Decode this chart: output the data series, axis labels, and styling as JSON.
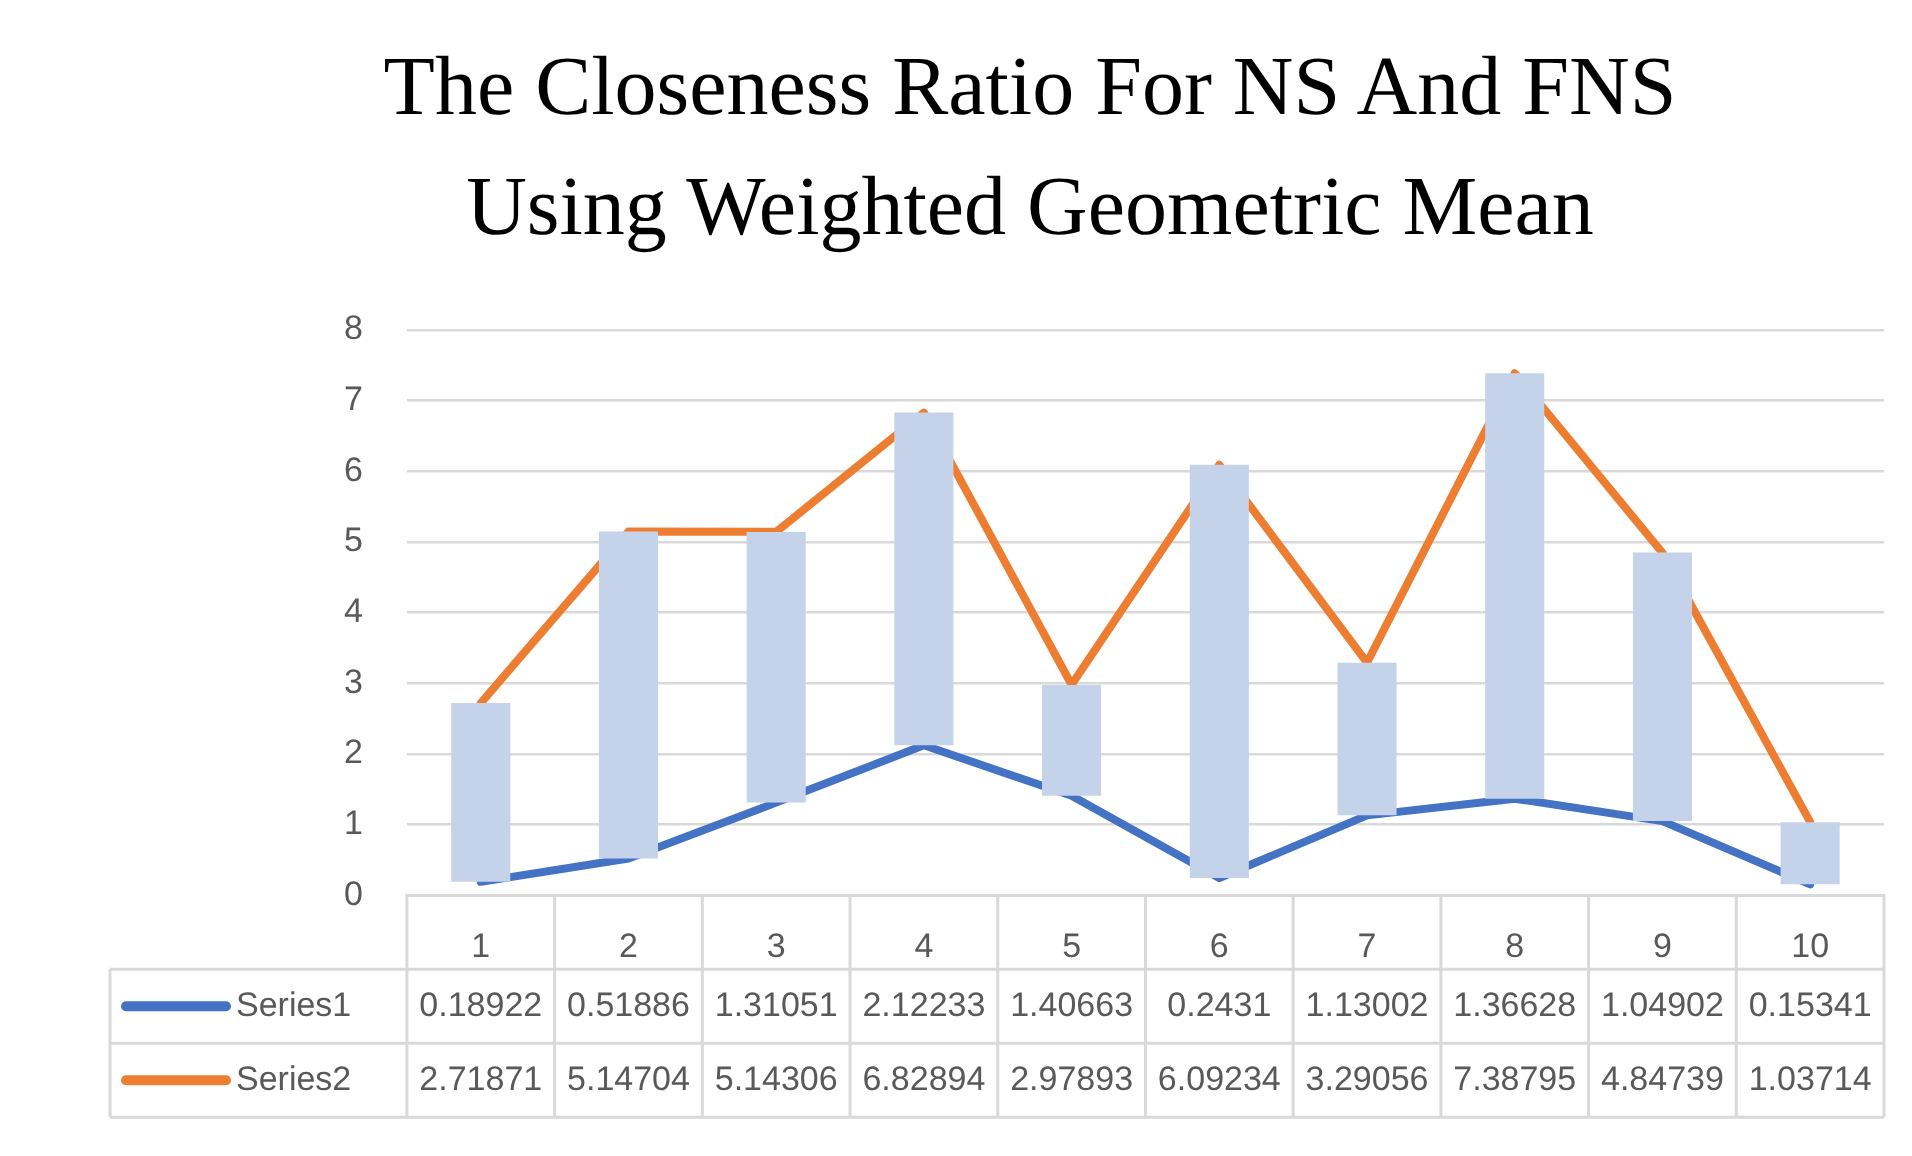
{
  "chart_data": {
    "type": "line",
    "title": "The Closeness Ratio For NS And FNS Using Weighted Geometric Mean",
    "categories": [
      "1",
      "2",
      "3",
      "4",
      "5",
      "6",
      "7",
      "8",
      "9",
      "10"
    ],
    "series": [
      {
        "type": "bar",
        "color": "#c5d3ea",
        "base": [
          0.18922,
          0.51886,
          1.31051,
          2.12233,
          1.40663,
          0.2431,
          1.13002,
          1.36628,
          1.04902,
          0.15341
        ],
        "values": [
          2.53,
          4.63,
          3.83,
          4.71,
          1.57,
          5.85,
          2.16,
          6.02,
          3.8,
          0.88
        ]
      },
      {
        "name": "Series1",
        "color": "#4472c4",
        "values": [
          0.18922,
          0.51886,
          1.31051,
          2.12233,
          1.40663,
          0.2431,
          1.13002,
          1.36628,
          1.04902,
          0.15341
        ],
        "value_labels": [
          "0.18922",
          "0.51886",
          "1.31051",
          "2.12233",
          "1.40663",
          "0.2431",
          "1.13002",
          "1.36628",
          "1.04902",
          "0.15341"
        ]
      },
      {
        "name": "Series2",
        "color": "#ed7d31",
        "values": [
          2.71871,
          5.14704,
          5.14306,
          6.82894,
          2.97893,
          6.09234,
          3.29056,
          7.38795,
          4.84739,
          1.03714
        ],
        "value_labels": [
          "2.71871",
          "5.14704",
          "5.14306",
          "6.82894",
          "2.97893",
          "6.09234",
          "3.29056",
          "7.38795",
          "4.84739",
          "1.03714"
        ]
      }
    ],
    "ylim": [
      0,
      8
    ],
    "yticks": [
      0,
      1,
      2,
      3,
      4,
      5,
      6,
      7,
      8
    ],
    "grid": "y",
    "legend": "bottom",
    "marker": "none",
    "line_style": "solid"
  }
}
